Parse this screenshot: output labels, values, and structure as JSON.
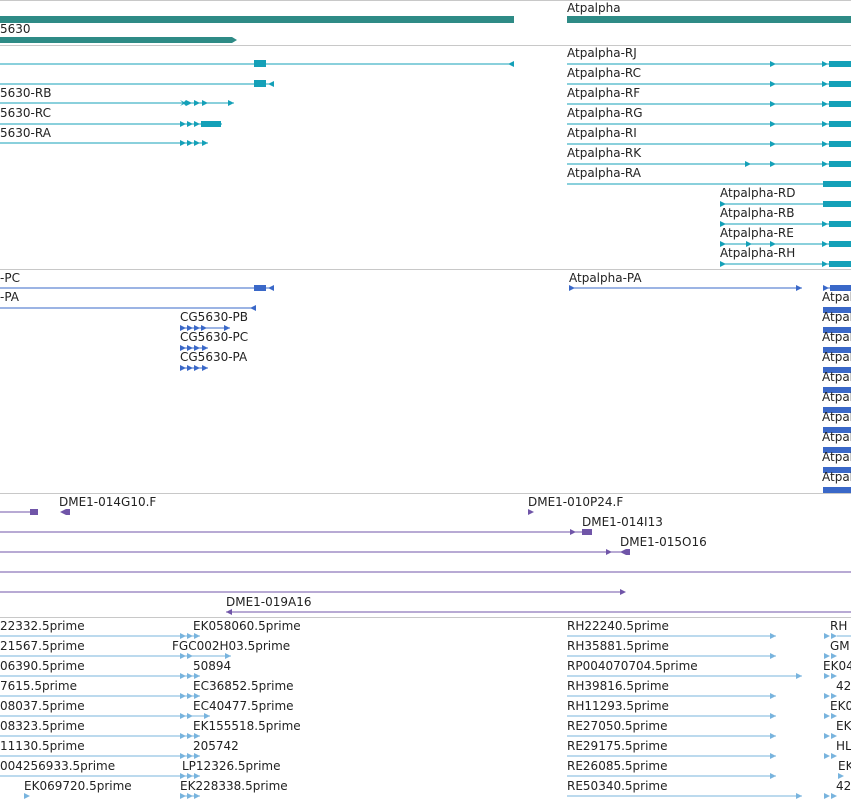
{
  "colors": {
    "gene": "#2e8b86",
    "transcript": "#14a0b8",
    "protein": "#3a68c8",
    "clone": "#7055a8",
    "est": "#78b4de",
    "separator": "#c8c8c8"
  },
  "tracks": {
    "genes": {
      "labels": [
        "5630",
        "Atpalpha"
      ]
    },
    "transcripts": {
      "left": [
        "5630-RB",
        "5630-RC",
        "5630-RA"
      ],
      "right": [
        "Atpalpha-RJ",
        "Atpalpha-RC",
        "Atpalpha-RF",
        "Atpalpha-RG",
        "Atpalpha-RI",
        "Atpalpha-RK",
        "Atpalpha-RA",
        "Atpalpha-RD",
        "Atpalpha-RB",
        "Atpalpha-RE",
        "Atpalpha-RH"
      ]
    },
    "proteins": {
      "left": [
        "-PC",
        "-PA"
      ],
      "middle": [
        "CG5630-PB",
        "CG5630-PC",
        "CG5630-PA"
      ],
      "right": [
        "Atpalpha-PA"
      ],
      "truncated": [
        "Atpal",
        "Atpal",
        "Atpal",
        "Atpal",
        "Atpal",
        "Atpal",
        "Atpal",
        "Atpal",
        "Atpal",
        "Atpal"
      ]
    },
    "clones": {
      "labels": [
        "DME1-014G10.F",
        "DME1-010P24.F",
        "DME1-014I13",
        "DME1-015O16",
        "DME1-019A16"
      ]
    },
    "ests": {
      "left": [
        "22332.5prime",
        "21567.5prime",
        "06390.5prime",
        "7615.5prime",
        "08037.5prime",
        "08323.5prime",
        "11130.5prime",
        "004256933.5prime",
        "EK069720.5prime"
      ],
      "middle": [
        "EK058060.5prime",
        "FGC002H03.5prime",
        "50894",
        "EC36852.5prime",
        "EC40477.5prime",
        "EK155518.5prime",
        "205742",
        "LP12326.5prime",
        "EK228338.5prime"
      ],
      "right": [
        "RH22240.5prime",
        "RH35881.5prime",
        "RP004070704.5prime",
        "RH39816.5prime",
        "RH11293.5prime",
        "RE27050.5prime",
        "RE29175.5prime",
        "RE26085.5prime",
        "RE50340.5prime"
      ],
      "edge": [
        "RH",
        "GM",
        "EK04",
        "42",
        "EK0",
        "EK",
        "HL",
        "EK",
        "42"
      ]
    }
  }
}
